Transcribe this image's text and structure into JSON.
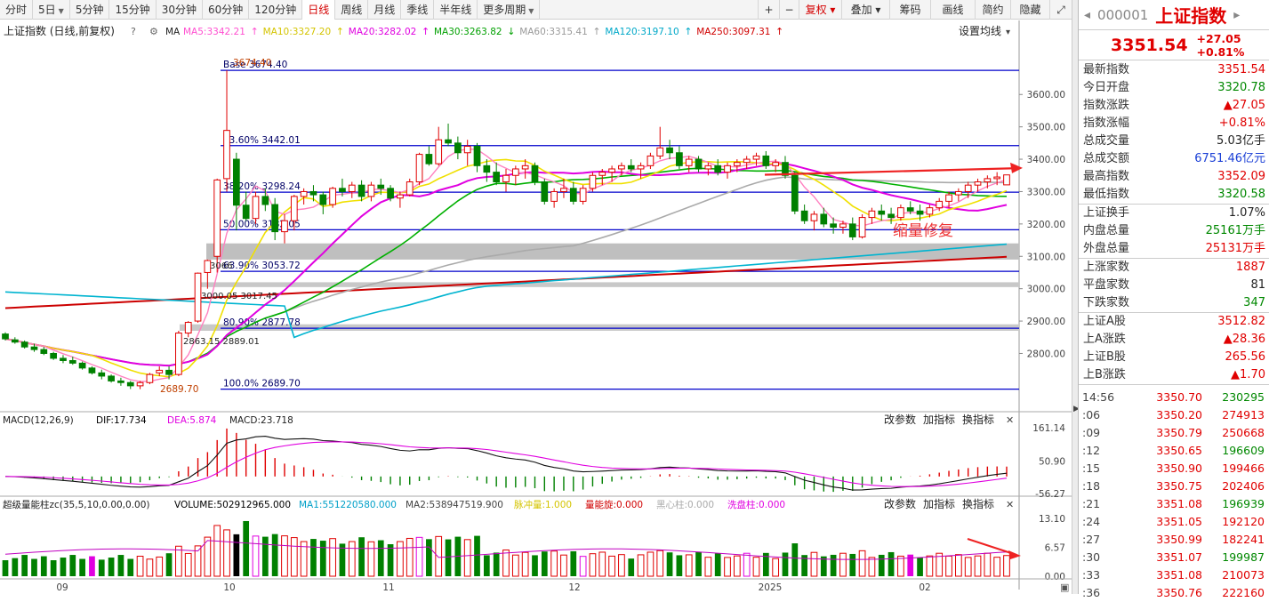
{
  "toolbar": {
    "periods": [
      "分时",
      "5日",
      "5分钟",
      "15分钟",
      "30分钟",
      "60分钟",
      "120分钟",
      "日线",
      "周线",
      "月线",
      "季线",
      "半年线",
      "更多周期"
    ],
    "dropdown_periods": [
      1,
      12
    ],
    "active": "日线",
    "right_buttons": [
      "复权",
      "叠加",
      "筹码",
      "画线",
      "简约",
      "隐藏"
    ],
    "plus": "+",
    "minus": "−"
  },
  "chart_header": {
    "title": "上证指数 (日线,前复权)",
    "ma_label": "MA",
    "mas": [
      {
        "text": "MA5:3342.21",
        "color": "#ff4fd0",
        "arrow": "↑"
      },
      {
        "text": "MA10:3327.20",
        "color": "#d4c400",
        "arrow": "↑"
      },
      {
        "text": "MA20:3282.02",
        "color": "#e000e0",
        "arrow": "↑"
      },
      {
        "text": "MA30:3263.82",
        "color": "#00a000",
        "arrow": "↓"
      },
      {
        "text": "MA60:3315.41",
        "color": "#9a9a9a",
        "arrow": "↑"
      },
      {
        "text": "MA120:3197.10",
        "color": "#00a8c8",
        "arrow": "↑"
      },
      {
        "text": "MA250:3097.31",
        "color": "#d00000",
        "arrow": "↑"
      }
    ],
    "settings": "设置均线"
  },
  "price_axis": [
    "3600.00",
    "3500.00",
    "3400.00",
    "3300.00",
    "3200.00",
    "3100.00",
    "3000.00",
    "2900.00",
    "2800.00"
  ],
  "fib_labels": [
    {
      "text": "Base  3674.40",
      "price": 3674.4
    },
    {
      "text": "23.60% 3442.01",
      "price": 3442.01
    },
    {
      "text": "38.20% 3298.24",
      "price": 3298.24
    },
    {
      "text": "50.00% 3182.05",
      "price": 3182.05
    },
    {
      "text": "63.90% 3053.72",
      "price": 3053.72
    },
    {
      "text": "80.90% 2877.78",
      "price": 2877.78
    },
    {
      "text": "100.0% 2689.70",
      "price": 2689.7
    }
  ],
  "price_annotations": {
    "high": "3674.40",
    "low": "2689.70",
    "a1": "3000.05  3017.45",
    "a2": "2863.15  2889.01",
    "a3": "3066"
  },
  "callout": "缩量修复",
  "macd": {
    "label": "MACD(12,26,9)",
    "dif": "DIF:17.734",
    "dea": "DEA:5.874",
    "macd": "MACD:23.718",
    "axis": [
      "161.14",
      "50.90",
      "-56.27"
    ],
    "buttons": [
      "改参数",
      "加指标",
      "换指标"
    ]
  },
  "volume": {
    "label": "超级量能柱zc(35,5,10,0.00,0.00)",
    "vol": "VOLUME:502912965.000",
    "ma1": "MA1:551220580.000",
    "ma2": "MA2:538947519.900",
    "extra": [
      {
        "text": "脉冲量:1.000",
        "color": "#d4c400"
      },
      {
        "text": "量能旋:0.000",
        "color": "#d00000"
      },
      {
        "text": "黑心柱:0.000",
        "color": "#aaaaaa"
      },
      {
        "text": "洗盘柱:0.000",
        "color": "#e000e0"
      }
    ],
    "axis": [
      "13.10",
      "6.57",
      "0.00"
    ],
    "buttons": [
      "改参数",
      "加指标",
      "换指标"
    ]
  },
  "x_axis": [
    {
      "t": "09",
      "x": 70
    },
    {
      "t": "10",
      "x": 258
    },
    {
      "t": "11",
      "x": 437
    },
    {
      "t": "12",
      "x": 646
    },
    {
      "t": "2025",
      "x": 866
    },
    {
      "t": "02",
      "x": 1040
    }
  ],
  "side": {
    "code": "000001",
    "name": "上证指数",
    "price": "3351.54",
    "change": "+27.05",
    "pct": "+0.81%",
    "stats1": [
      {
        "k": "最新指数",
        "v": "3351.54",
        "c": "red"
      },
      {
        "k": "今日开盘",
        "v": "3320.78",
        "c": "green"
      },
      {
        "k": "指数涨跌",
        "v": "▲27.05",
        "c": "red"
      },
      {
        "k": "指数涨幅",
        "v": "+0.81%",
        "c": "red"
      },
      {
        "k": "总成交量",
        "v": "5.03亿手",
        "c": "dark"
      },
      {
        "k": "总成交额",
        "v": "6751.46亿元",
        "c": "blue"
      },
      {
        "k": "最高指数",
        "v": "3352.09",
        "c": "red"
      },
      {
        "k": "最低指数",
        "v": "3320.58",
        "c": "green"
      }
    ],
    "stats2": [
      {
        "k": "上证换手",
        "v": "1.07%",
        "c": "dark"
      },
      {
        "k": "内盘总量",
        "v": "25161万手",
        "c": "green"
      },
      {
        "k": "外盘总量",
        "v": "25131万手",
        "c": "red"
      }
    ],
    "stats3": [
      {
        "k": "上涨家数",
        "v": "1887",
        "c": "red"
      },
      {
        "k": "平盘家数",
        "v": "81",
        "c": "dark"
      },
      {
        "k": "下跌家数",
        "v": "347",
        "c": "green"
      }
    ],
    "stats4": [
      {
        "k": "上证A股",
        "v": "3512.82",
        "c": "red"
      },
      {
        "k": "上A涨跌",
        "v": "▲28.36",
        "c": "red"
      },
      {
        "k": "上证B股",
        "v": "265.56",
        "c": "red"
      },
      {
        "k": "上B涨跌",
        "v": "▲1.70",
        "c": "red"
      }
    ],
    "ticks": [
      {
        "t": "14:56",
        "p": "3350.70",
        "v": "230295"
      },
      {
        "t": ":06",
        "p": "3350.20",
        "v": "274913"
      },
      {
        "t": ":09",
        "p": "3350.79",
        "v": "250668"
      },
      {
        "t": ":12",
        "p": "3350.65",
        "v": "196609"
      },
      {
        "t": ":15",
        "p": "3350.90",
        "v": "199466"
      },
      {
        "t": ":18",
        "p": "3350.75",
        "v": "202406"
      },
      {
        "t": ":21",
        "p": "3351.08",
        "v": "196939"
      },
      {
        "t": ":24",
        "p": "3351.05",
        "v": "192120"
      },
      {
        "t": ":27",
        "p": "3350.99",
        "v": "182241"
      },
      {
        "t": ":30",
        "p": "3351.07",
        "v": "199987"
      },
      {
        "t": ":33",
        "p": "3351.08",
        "v": "210073"
      },
      {
        "t": ":36",
        "p": "3350.76",
        "v": "222160"
      }
    ]
  },
  "chart_data": {
    "type": "candlestick",
    "note_series": "daily OHLC of 上证指数, Sep 2024 – Feb 2025 (approximate)",
    "ylim": [
      2620,
      3760
    ],
    "ohlc": [
      [
        2860,
        2865,
        2840,
        2845
      ],
      [
        2842,
        2850,
        2830,
        2835
      ],
      [
        2835,
        2840,
        2815,
        2820
      ],
      [
        2820,
        2830,
        2805,
        2812
      ],
      [
        2812,
        2820,
        2795,
        2800
      ],
      [
        2800,
        2805,
        2780,
        2785
      ],
      [
        2785,
        2795,
        2770,
        2778
      ],
      [
        2778,
        2790,
        2765,
        2770
      ],
      [
        2770,
        2775,
        2750,
        2755
      ],
      [
        2755,
        2760,
        2735,
        2740
      ],
      [
        2740,
        2750,
        2720,
        2730
      ],
      [
        2730,
        2735,
        2710,
        2715
      ],
      [
        2715,
        2725,
        2700,
        2710
      ],
      [
        2710,
        2715,
        2690,
        2700
      ],
      [
        2700,
        2715,
        2689.7,
        2710
      ],
      [
        2710,
        2740,
        2705,
        2735
      ],
      [
        2740,
        2760,
        2730,
        2748
      ],
      [
        2748,
        2760,
        2720,
        2735
      ],
      [
        2735,
        2870,
        2730,
        2863
      ],
      [
        2863,
        2900,
        2850,
        2896
      ],
      [
        2900,
        3050,
        2895,
        3048
      ],
      [
        3050,
        3090,
        3000,
        3087
      ],
      [
        3100,
        3340,
        3050,
        3336
      ],
      [
        3340,
        3674.4,
        3300,
        3489
      ],
      [
        3400,
        3420,
        3180,
        3258
      ],
      [
        3258,
        3300,
        3210,
        3217
      ],
      [
        3217,
        3300,
        3200,
        3285
      ],
      [
        3285,
        3310,
        3240,
        3260
      ],
      [
        3260,
        3280,
        3150,
        3176
      ],
      [
        3176,
        3230,
        3140,
        3210
      ],
      [
        3210,
        3290,
        3180,
        3285
      ],
      [
        3285,
        3310,
        3260,
        3300
      ],
      [
        3300,
        3320,
        3270,
        3290
      ],
      [
        3290,
        3300,
        3230,
        3260
      ],
      [
        3260,
        3315,
        3250,
        3310
      ],
      [
        3310,
        3340,
        3285,
        3300
      ],
      [
        3300,
        3330,
        3280,
        3320
      ],
      [
        3320,
        3335,
        3270,
        3285
      ],
      [
        3285,
        3330,
        3270,
        3320
      ],
      [
        3320,
        3340,
        3290,
        3310
      ],
      [
        3310,
        3320,
        3270,
        3280
      ],
      [
        3280,
        3300,
        3250,
        3290
      ],
      [
        3290,
        3340,
        3285,
        3330
      ],
      [
        3330,
        3420,
        3320,
        3415
      ],
      [
        3415,
        3440,
        3380,
        3386
      ],
      [
        3386,
        3500,
        3380,
        3460
      ],
      [
        3460,
        3510,
        3440,
        3450
      ],
      [
        3450,
        3470,
        3400,
        3420
      ],
      [
        3420,
        3460,
        3380,
        3440
      ],
      [
        3440,
        3450,
        3360,
        3380
      ],
      [
        3380,
        3400,
        3330,
        3360
      ],
      [
        3360,
        3390,
        3320,
        3330
      ],
      [
        3330,
        3370,
        3300,
        3350
      ],
      [
        3350,
        3380,
        3320,
        3370
      ],
      [
        3370,
        3400,
        3340,
        3380
      ],
      [
        3380,
        3390,
        3320,
        3330
      ],
      [
        3330,
        3340,
        3260,
        3270
      ],
      [
        3270,
        3310,
        3250,
        3300
      ],
      [
        3300,
        3340,
        3280,
        3310
      ],
      [
        3310,
        3330,
        3260,
        3270
      ],
      [
        3270,
        3320,
        3260,
        3310
      ],
      [
        3310,
        3360,
        3300,
        3350
      ],
      [
        3350,
        3370,
        3320,
        3360
      ],
      [
        3360,
        3380,
        3330,
        3370
      ],
      [
        3370,
        3390,
        3350,
        3380
      ],
      [
        3380,
        3400,
        3360,
        3370
      ],
      [
        3370,
        3390,
        3340,
        3380
      ],
      [
        3380,
        3420,
        3370,
        3410
      ],
      [
        3410,
        3500,
        3400,
        3435
      ],
      [
        3435,
        3460,
        3400,
        3420
      ],
      [
        3420,
        3440,
        3370,
        3380
      ],
      [
        3380,
        3410,
        3360,
        3400
      ],
      [
        3400,
        3410,
        3360,
        3370
      ],
      [
        3370,
        3390,
        3350,
        3380
      ],
      [
        3380,
        3400,
        3350,
        3360
      ],
      [
        3360,
        3390,
        3340,
        3380
      ],
      [
        3380,
        3400,
        3360,
        3390
      ],
      [
        3390,
        3410,
        3370,
        3400
      ],
      [
        3400,
        3420,
        3380,
        3410
      ],
      [
        3410,
        3425,
        3370,
        3380
      ],
      [
        3380,
        3400,
        3360,
        3390
      ],
      [
        3390,
        3410,
        3340,
        3350
      ],
      [
        3350,
        3360,
        3230,
        3240
      ],
      [
        3240,
        3260,
        3200,
        3210
      ],
      [
        3210,
        3240,
        3180,
        3230
      ],
      [
        3230,
        3250,
        3190,
        3200
      ],
      [
        3200,
        3220,
        3170,
        3190
      ],
      [
        3190,
        3210,
        3170,
        3200
      ],
      [
        3200,
        3220,
        3150,
        3160
      ],
      [
        3160,
        3230,
        3155,
        3220
      ],
      [
        3220,
        3250,
        3200,
        3240
      ],
      [
        3240,
        3260,
        3210,
        3230
      ],
      [
        3230,
        3250,
        3200,
        3220
      ],
      [
        3220,
        3260,
        3210,
        3250
      ],
      [
        3250,
        3270,
        3230,
        3240
      ],
      [
        3240,
        3260,
        3210,
        3230
      ],
      [
        3230,
        3260,
        3220,
        3250
      ],
      [
        3250,
        3280,
        3240,
        3270
      ],
      [
        3270,
        3300,
        3250,
        3290
      ],
      [
        3290,
        3310,
        3270,
        3300
      ],
      [
        3300,
        3330,
        3280,
        3320
      ],
      [
        3320,
        3340,
        3300,
        3330
      ],
      [
        3330,
        3350,
        3310,
        3340
      ],
      [
        3340,
        3360,
        3320,
        3345
      ],
      [
        3320.78,
        3352.09,
        3320.58,
        3351.54
      ]
    ],
    "volume_range": [
      0,
      13.1
    ],
    "macd_range": [
      -56.27,
      161.14
    ]
  }
}
